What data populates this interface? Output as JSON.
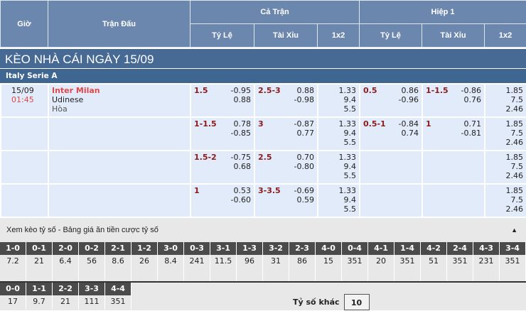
{
  "header": {
    "time": "Giờ",
    "match": "Trận Đấu",
    "full": "Cả Trận",
    "half": "Hiệp 1",
    "hdp": "Tỷ Lệ",
    "ou": "Tài Xỉu",
    "x12": "1x2"
  },
  "title": "KÈO NHÀ CÁI NGÀY 15/09",
  "league": "Italy Serie A",
  "match": {
    "date": "15/09",
    "time": "01:45",
    "home": "Inter Milan",
    "away": "Udinese",
    "draw": "Hòa"
  },
  "rows": [
    {
      "ft_hdp": [
        "1.5",
        "-0.95",
        "0.88"
      ],
      "ft_ou": [
        "2.5-3",
        "0.88",
        "-0.98"
      ],
      "ft_1x2": [
        "1.33",
        "9.4",
        "5.5"
      ],
      "h1_hdp": [
        "0.5",
        "0.86",
        "-0.96"
      ],
      "h1_ou": [
        "1-1.5",
        "-0.86",
        "0.76"
      ],
      "h1_1x2": [
        "1.85",
        "7.5",
        "2.46"
      ]
    },
    {
      "ft_hdp": [
        "1-1.5",
        "0.78",
        "-0.85"
      ],
      "ft_ou": [
        "3",
        "-0.87",
        "0.77"
      ],
      "ft_1x2": [
        "1.33",
        "9.4",
        "5.5"
      ],
      "h1_hdp": [
        "0.5-1",
        "-0.84",
        "0.74"
      ],
      "h1_ou": [
        "1",
        "0.71",
        "-0.81"
      ],
      "h1_1x2": [
        "1.85",
        "7.5",
        "2.46"
      ]
    },
    {
      "ft_hdp": [
        "1.5-2",
        "-0.75",
        "0.68"
      ],
      "ft_ou": [
        "2.5",
        "0.70",
        "-0.80"
      ],
      "ft_1x2": [
        "1.33",
        "9.4",
        "5.5"
      ],
      "h1_hdp": [
        "",
        "",
        ""
      ],
      "h1_ou": [
        "",
        "",
        ""
      ],
      "h1_1x2": [
        "1.85",
        "7.5",
        "2.46"
      ]
    },
    {
      "ft_hdp": [
        "1",
        "0.53",
        "-0.60"
      ],
      "ft_ou": [
        "3-3.5",
        "-0.69",
        "0.59"
      ],
      "ft_1x2": [
        "1.33",
        "9.4",
        "5.5"
      ],
      "h1_hdp": [
        "",
        "",
        ""
      ],
      "h1_ou": [
        "",
        "",
        ""
      ],
      "h1_1x2": [
        "1.85",
        "7.5",
        "2.46"
      ]
    }
  ],
  "correct_score": {
    "heading": "Xem kèo tỷ số - Bảng giá ăn tiền cược tỷ số",
    "toggle_icon": "triangle-up",
    "scores": [
      [
        "1-0",
        "7.2"
      ],
      [
        "0-1",
        "21"
      ],
      [
        "2-0",
        "6.4"
      ],
      [
        "0-2",
        "56"
      ],
      [
        "2-1",
        "8.6"
      ],
      [
        "1-2",
        "26"
      ],
      [
        "3-0",
        "8.4"
      ],
      [
        "0-3",
        "241"
      ],
      [
        "3-1",
        "11.5"
      ],
      [
        "1-3",
        "96"
      ],
      [
        "3-2",
        "31"
      ],
      [
        "2-3",
        "86"
      ],
      [
        "4-0",
        "15"
      ],
      [
        "0-4",
        "351"
      ],
      [
        "4-1",
        "20"
      ],
      [
        "1-4",
        "351"
      ],
      [
        "4-2",
        "51"
      ],
      [
        "2-4",
        "351"
      ],
      [
        "4-3",
        "231"
      ],
      [
        "3-4",
        "351"
      ]
    ],
    "draws": [
      [
        "0-0",
        "17"
      ],
      [
        "1-1",
        "9.7"
      ],
      [
        "2-2",
        "21"
      ],
      [
        "3-3",
        "111"
      ],
      [
        "4-4",
        "351"
      ]
    ],
    "other_label": "Tỷ số khác",
    "other_value": "10"
  }
}
